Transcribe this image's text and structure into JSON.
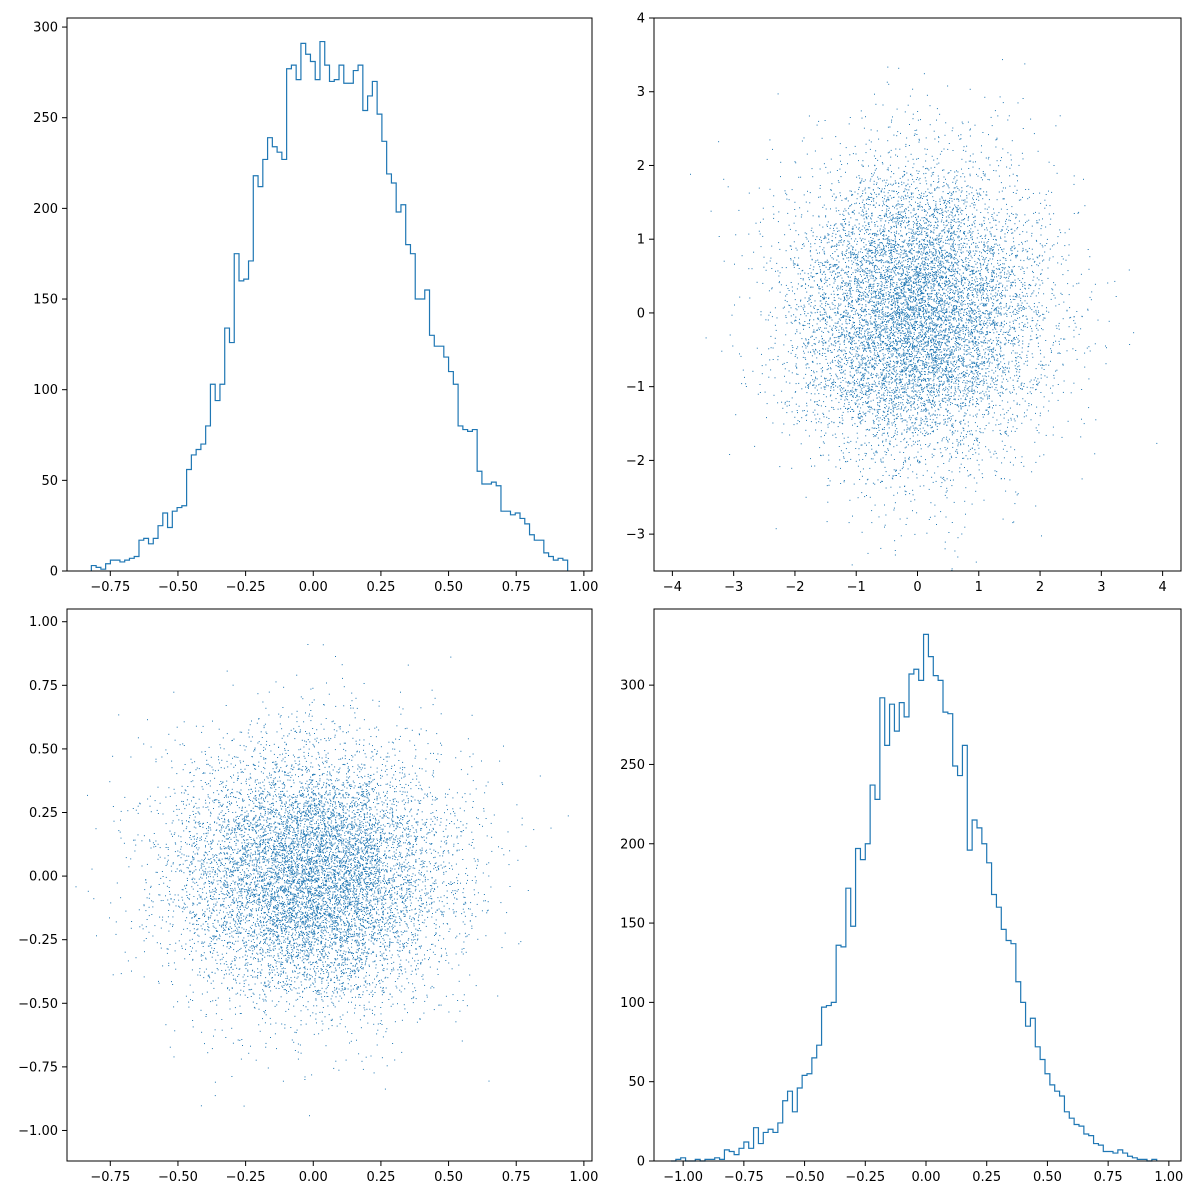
{
  "chart_data": [
    {
      "type": "step-histogram",
      "panel": "top-left",
      "x_range": [
        -0.82,
        0.94
      ],
      "xlim": [
        -0.91,
        1.03
      ],
      "ylim": [
        0,
        305
      ],
      "x_ticks": [
        "−0.75",
        "−0.50",
        "−0.25",
        "0.00",
        "0.25",
        "0.50",
        "0.75",
        "1.00"
      ],
      "x_tick_values": [
        -0.75,
        -0.5,
        -0.25,
        0.0,
        0.25,
        0.5,
        0.75,
        1.0
      ],
      "y_ticks": [
        "0",
        "50",
        "100",
        "150",
        "200",
        "250",
        "300"
      ],
      "y_tick_values": [
        0,
        50,
        100,
        150,
        200,
        250,
        300
      ],
      "color": "#1f77b4",
      "bins": 100,
      "counts": [
        3,
        2,
        1,
        4,
        6,
        6,
        5,
        6,
        7,
        8,
        17,
        18,
        15,
        18,
        25,
        32,
        24,
        33,
        35,
        36,
        56,
        64,
        67,
        70,
        80,
        103,
        94,
        103,
        134,
        126,
        175,
        160,
        161,
        171,
        218,
        212,
        227,
        239,
        234,
        231,
        227,
        277,
        279,
        271,
        291,
        285,
        281,
        271,
        292,
        279,
        270,
        271,
        279,
        269,
        269,
        276,
        279,
        254,
        262,
        270,
        252,
        237,
        219,
        214,
        198,
        202,
        180,
        175,
        150,
        150,
        155,
        130,
        124,
        124,
        118,
        110,
        103,
        80,
        78,
        77,
        78,
        55,
        48,
        48,
        49,
        47,
        33,
        33,
        31,
        32,
        29,
        26,
        20,
        17,
        17,
        10,
        8,
        6,
        7,
        6
      ]
    },
    {
      "type": "scatter",
      "panel": "top-right",
      "xlim": [
        -4.3,
        4.3
      ],
      "ylim": [
        -3.5,
        4.0
      ],
      "x_ticks": [
        "−4",
        "−3",
        "−2",
        "−1",
        "0",
        "1",
        "2",
        "3",
        "4"
      ],
      "x_tick_values": [
        -4,
        -3,
        -2,
        -1,
        0,
        1,
        2,
        3,
        4
      ],
      "y_ticks": [
        "−3",
        "−2",
        "−1",
        "0",
        "1",
        "2",
        "3",
        "4"
      ],
      "y_tick_values": [
        -3,
        -2,
        -1,
        0,
        1,
        2,
        3,
        4
      ],
      "color": "#1f77b4",
      "points": 10000,
      "distribution": "standard normal, x sigma 1.0, y sigma 1.0"
    },
    {
      "type": "scatter",
      "panel": "bottom-left",
      "xlim": [
        -0.91,
        1.03
      ],
      "ylim": [
        -1.12,
        1.05
      ],
      "x_ticks": [
        "−0.75",
        "−0.50",
        "−0.25",
        "0.00",
        "0.25",
        "0.50",
        "0.75",
        "1.00"
      ],
      "x_tick_values": [
        -0.75,
        -0.5,
        -0.25,
        0.0,
        0.25,
        0.5,
        0.75,
        1.0
      ],
      "y_ticks": [
        "−1.00",
        "−0.75",
        "−0.50",
        "−0.25",
        "0.00",
        "0.25",
        "0.50",
        "0.75",
        "1.00"
      ],
      "y_tick_values": [
        -1.0,
        -0.75,
        -0.5,
        -0.25,
        0.0,
        0.25,
        0.5,
        0.75,
        1.0
      ],
      "color": "#1f77b4",
      "points": 10000,
      "distribution": "normal, sigma 0.25 both axes"
    },
    {
      "type": "step-histogram",
      "panel": "bottom-right",
      "x_range": [
        -1.05,
        0.95
      ],
      "xlim": [
        -1.12,
        1.05
      ],
      "ylim": [
        0,
        348
      ],
      "x_ticks": [
        "−1.00",
        "−0.75",
        "−0.50",
        "−0.25",
        "0.00",
        "0.25",
        "0.50",
        "0.75",
        "1.00"
      ],
      "x_tick_values": [
        -1.0,
        -0.75,
        -0.5,
        -0.25,
        0.0,
        0.25,
        0.5,
        0.75,
        1.0
      ],
      "y_ticks": [
        "0",
        "50",
        "100",
        "150",
        "200",
        "250",
        "300"
      ],
      "y_tick_values": [
        0,
        50,
        100,
        150,
        200,
        250,
        300
      ],
      "color": "#1f77b4",
      "bins": 100,
      "counts": [
        0,
        1,
        2,
        0,
        0,
        1,
        0,
        1,
        1,
        2,
        1,
        7,
        6,
        4,
        8,
        12,
        8,
        21,
        11,
        18,
        20,
        18,
        24,
        38,
        44,
        31,
        46,
        54,
        55,
        65,
        73,
        97,
        98,
        100,
        136,
        135,
        172,
        148,
        197,
        190,
        200,
        237,
        228,
        292,
        262,
        288,
        271,
        289,
        280,
        307,
        310,
        303,
        332,
        318,
        306,
        303,
        283,
        282,
        249,
        243,
        262,
        196,
        215,
        210,
        200,
        188,
        168,
        160,
        146,
        139,
        137,
        113,
        100,
        85,
        90,
        72,
        64,
        55,
        48,
        44,
        41,
        31,
        27,
        23,
        22,
        17,
        16,
        11,
        10,
        6,
        6,
        5,
        7,
        5,
        3,
        2,
        1,
        1,
        0,
        1
      ]
    }
  ]
}
